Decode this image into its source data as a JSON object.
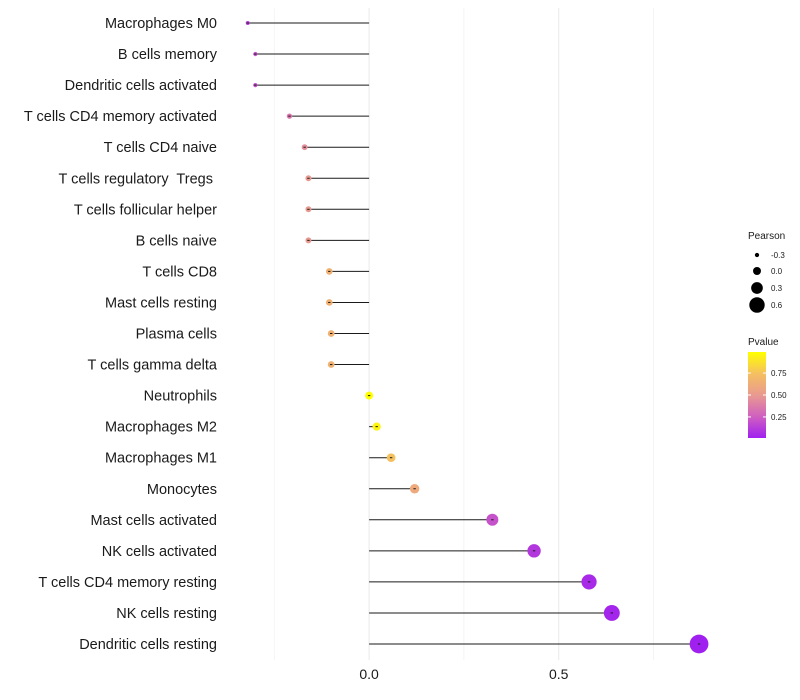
{
  "chart_data": {
    "type": "lollipop",
    "categories": [
      "Macrophages M0",
      "B cells memory",
      "Dendritic cells activated",
      "T cells CD4 memory activated",
      "T cells CD4 naive",
      "T cells regulatory  Tregs ",
      "T cells follicular helper",
      "B cells naive",
      "T cells CD8",
      "Mast cells resting",
      "Plasma cells",
      "T cells gamma delta",
      "Neutrophils",
      "Macrophages M2",
      "Macrophages M1",
      "Monocytes",
      "Mast cells activated",
      "NK cells activated",
      "T cells CD4 memory resting",
      "NK cells resting",
      "Dendritic cells resting"
    ],
    "values": [
      -0.32,
      -0.3,
      -0.3,
      -0.21,
      -0.17,
      -0.16,
      -0.16,
      -0.16,
      -0.105,
      -0.105,
      -0.1,
      -0.1,
      0.0,
      0.02,
      0.058,
      0.12,
      0.325,
      0.435,
      0.58,
      0.64,
      0.87
    ],
    "pvalues": [
      0.14,
      0.2,
      0.2,
      0.35,
      0.45,
      0.5,
      0.5,
      0.5,
      0.65,
      0.65,
      0.65,
      0.65,
      0.99,
      0.95,
      0.75,
      0.6,
      0.2,
      0.1,
      0.05,
      0.03,
      0.01
    ],
    "xlabel": "",
    "ylabel": "",
    "xlim": [
      -0.38,
      0.92
    ],
    "xticks": [
      0.0,
      0.5
    ],
    "xtick_labels": [
      "0.0",
      "0.5"
    ],
    "grid": true,
    "size_legend": {
      "title": "Pearson",
      "values": [
        -0.3,
        0.0,
        0.3,
        0.6
      ],
      "labels": [
        "-0.3",
        "0.0",
        "0.3",
        "0.6"
      ]
    },
    "color_legend": {
      "title": "Pvalue",
      "ticks": [
        0.25,
        0.5,
        0.75
      ],
      "labels": [
        "0.25",
        "0.50",
        "0.75"
      ],
      "range": [
        0.01,
        0.99
      ],
      "gradient": [
        "#a020f0",
        "#d060c0",
        "#e99a90",
        "#f5c060",
        "#ffff00"
      ]
    },
    "legend_position": "right",
    "segment_color": "#1a1a1a",
    "grid_color": "#ebebeb"
  }
}
